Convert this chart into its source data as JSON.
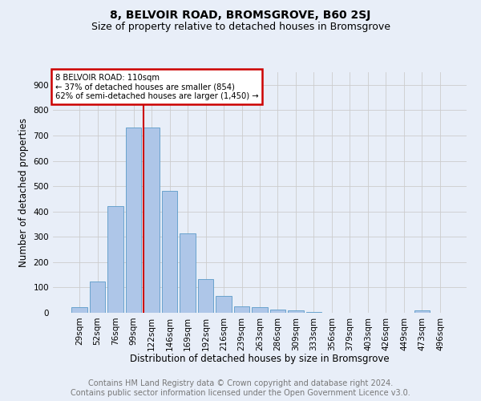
{
  "title": "8, BELVOIR ROAD, BROMSGROVE, B60 2SJ",
  "subtitle": "Size of property relative to detached houses in Bromsgrove",
  "xlabel": "Distribution of detached houses by size in Bromsgrove",
  "ylabel": "Number of detached properties",
  "bar_labels": [
    "29sqm",
    "52sqm",
    "76sqm",
    "99sqm",
    "122sqm",
    "146sqm",
    "169sqm",
    "192sqm",
    "216sqm",
    "239sqm",
    "263sqm",
    "286sqm",
    "309sqm",
    "333sqm",
    "356sqm",
    "379sqm",
    "403sqm",
    "426sqm",
    "449sqm",
    "473sqm",
    "496sqm"
  ],
  "bar_values": [
    22,
    122,
    420,
    730,
    730,
    480,
    312,
    132,
    65,
    25,
    22,
    14,
    8,
    2,
    1,
    0,
    0,
    0,
    0,
    8,
    0
  ],
  "bar_color": "#aec6e8",
  "bar_edge_color": "#5a9ac8",
  "vline_x": 3.57,
  "vline_color": "#cc0000",
  "annotation_text": "8 BELVOIR ROAD: 110sqm\n← 37% of detached houses are smaller (854)\n62% of semi-detached houses are larger (1,450) →",
  "annotation_box_color": "#cc0000",
  "annotation_bg_color": "#ffffff",
  "ylim": [
    0,
    950
  ],
  "yticks": [
    0,
    100,
    200,
    300,
    400,
    500,
    600,
    700,
    800,
    900
  ],
  "footer_text": "Contains HM Land Registry data © Crown copyright and database right 2024.\nContains public sector information licensed under the Open Government Licence v3.0.",
  "bg_color": "#e8eef8",
  "grid_color": "#cccccc",
  "title_fontsize": 10,
  "subtitle_fontsize": 9,
  "axis_label_fontsize": 8.5,
  "tick_fontsize": 7.5,
  "footer_fontsize": 7
}
